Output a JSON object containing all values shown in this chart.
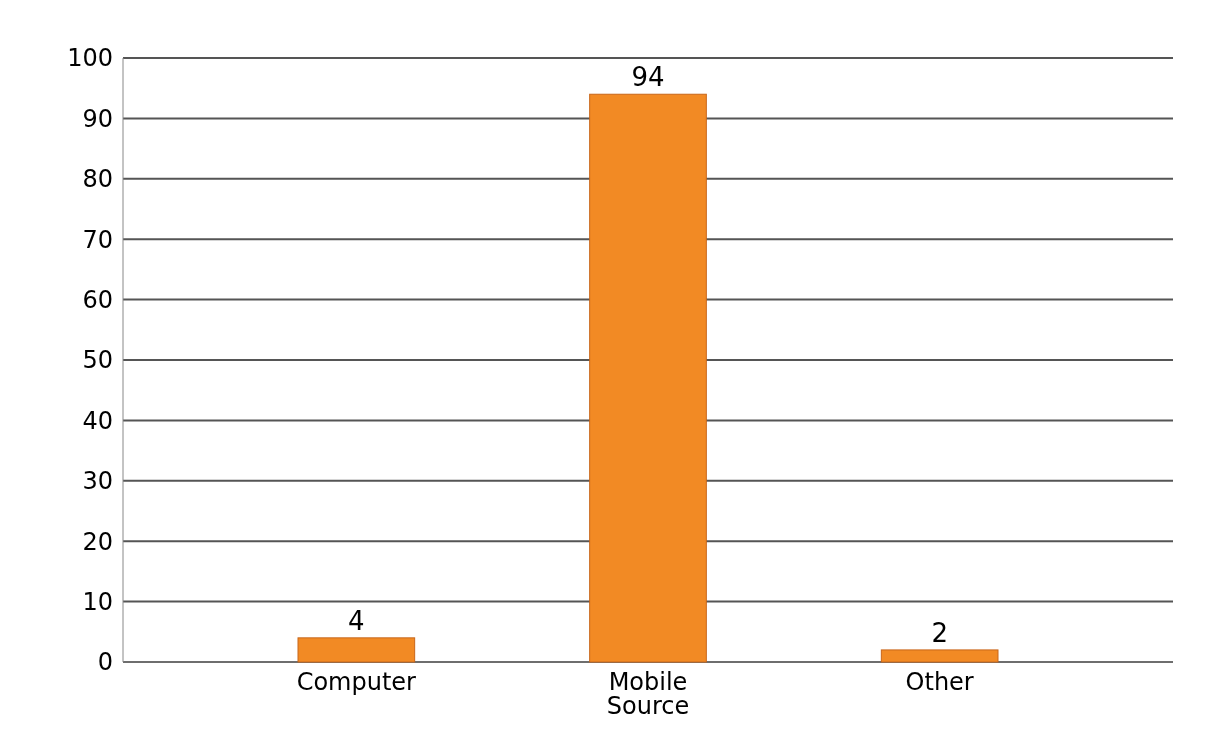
{
  "chart_data": {
    "type": "bar",
    "categories": [
      "Computer",
      "Mobile",
      "Other"
    ],
    "xlabel": "Source",
    "values": [
      4,
      94,
      2
    ],
    "color": "#f28a24",
    "ylim": [
      0,
      100
    ],
    "yticks": [
      0,
      10,
      20,
      30,
      40,
      50,
      60,
      70,
      80,
      90,
      100
    ],
    "grid": "y",
    "data_labels": true
  }
}
